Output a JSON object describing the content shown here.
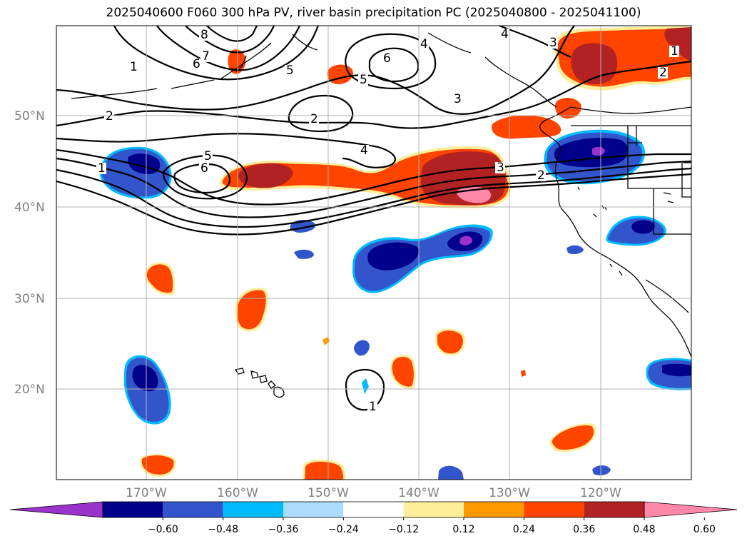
{
  "title": "2025040600 F060 300 hPa PV, river basin precipitation PC (2025040800 - 2025041100)",
  "latitude_labels": [
    "50°N",
    "40°N",
    "30°N",
    "20°N"
  ],
  "longitude_labels": [
    "170°W",
    "160°W",
    "150°W",
    "140°W",
    "130°W",
    "120°W"
  ],
  "colorbar": {
    "colors": [
      "#9933cc",
      "#00008b",
      "#3355cc",
      "#00bbff",
      "#aaddff",
      "#ffffff",
      "#ffee99",
      "#ff9900",
      "#ff4400",
      "#b22222",
      "#ff88aa"
    ],
    "tick_labels": [
      "−0.60",
      "−0.48",
      "−0.36",
      "−0.24",
      "−0.12",
      "0.12",
      "0.24",
      "0.36",
      "0.48",
      "0.60"
    ]
  },
  "contour_labels": [
    "8",
    "7",
    "6",
    "1",
    "2",
    "5",
    "6",
    "4",
    "5",
    "3",
    "4",
    "3",
    "1",
    "2",
    "2",
    "4",
    "5",
    "6",
    "1",
    "3",
    "2",
    "1"
  ],
  "colors": {
    "grid": "#b0b0b0",
    "axis_label": "#808080"
  }
}
